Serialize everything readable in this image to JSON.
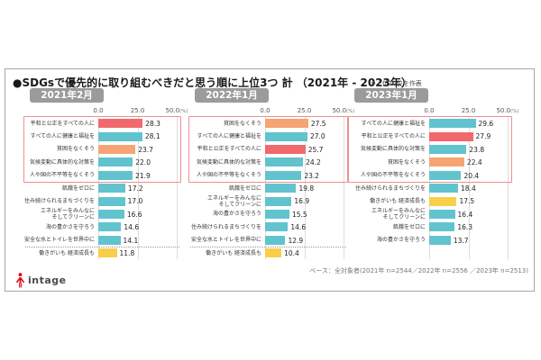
{
  "title": "●SDGsで優先的に取り組むべきだと思う順に上位3つ 計 （2021年 - 2023年）",
  "note": "※上位10位を作表",
  "base_note": "ベース：全対象者(2021年 n=2544／2022年 n=2556 ／2023年 n=2513)",
  "logo": {
    "text": "intage",
    "color": "#e60012"
  },
  "colors": {
    "teal": "#61c3ce",
    "red": "#f1696d",
    "orange": "#f6a473",
    "yellow": "#f8ce4b",
    "highlight_border": "#f08e8e",
    "badge_bg": "#9b9b9b",
    "gridline": "#dcdcdc"
  },
  "axis": {
    "max": 50,
    "ticks": [
      {
        "label": "0.0",
        "value": 0,
        "suffix": ""
      },
      {
        "label": "25.0",
        "value": 25,
        "suffix": ""
      },
      {
        "label": "50.0",
        "value": 50,
        "suffix": "(%)"
      }
    ]
  },
  "chart_data": [
    {
      "type": "bar",
      "orientation": "horizontal",
      "period": "2021年2月",
      "xlim": [
        0,
        50
      ],
      "highlight_top": 5,
      "divider_before_last": true,
      "items": [
        {
          "label": "平和と公正をすべての人に",
          "value": 28.3,
          "color": "red"
        },
        {
          "label": "すべての人に健康と福祉を",
          "value": 28.1,
          "color": "teal"
        },
        {
          "label": "貧困をなくそう",
          "value": 23.7,
          "color": "orange"
        },
        {
          "label": "気候変動に具体的な対策を",
          "value": 22.0,
          "color": "teal"
        },
        {
          "label": "人や国の不平等をなくそう",
          "value": 21.9,
          "color": "teal"
        },
        {
          "label": "飢餓をゼロに",
          "value": 17.2,
          "color": "teal"
        },
        {
          "label": "住み続けられるまちづくりを",
          "value": 17.0,
          "color": "teal"
        },
        {
          "label": "エネルギーをみんなに\nそしてクリーンに",
          "value": 16.6,
          "color": "teal"
        },
        {
          "label": "海の豊かさを守ろう",
          "value": 14.6,
          "color": "teal"
        },
        {
          "label": "安全な水とトイレを世界中に",
          "value": 14.1,
          "color": "teal"
        },
        {
          "label": "働きがいも 経済成長も",
          "value": 11.8,
          "color": "yellow"
        }
      ]
    },
    {
      "type": "bar",
      "orientation": "horizontal",
      "period": "2022年1月",
      "xlim": [
        0,
        50
      ],
      "highlight_top": 5,
      "divider_before_last": true,
      "items": [
        {
          "label": "貧困をなくそう",
          "value": 27.5,
          "color": "orange"
        },
        {
          "label": "すべての人に健康と福祉を",
          "value": 27.0,
          "color": "teal"
        },
        {
          "label": "平和と公正をすべての人に",
          "value": 25.7,
          "color": "red"
        },
        {
          "label": "気候変動に具体的な対策を",
          "value": 24.2,
          "color": "teal"
        },
        {
          "label": "人や国の不平等をなくそう",
          "value": 23.2,
          "color": "teal"
        },
        {
          "label": "飢餓をゼロに",
          "value": 19.8,
          "color": "teal"
        },
        {
          "label": "エネルギーをみんなに\nそしてクリーンに",
          "value": 16.9,
          "color": "teal"
        },
        {
          "label": "海の豊かさを守ろう",
          "value": 15.5,
          "color": "teal"
        },
        {
          "label": "住み続けられるまちづくりを",
          "value": 14.6,
          "color": "teal"
        },
        {
          "label": "安全な水とトイレを世界中に",
          "value": 12.9,
          "color": "teal"
        },
        {
          "label": "働きがいも 経済成長も",
          "value": 10.4,
          "color": "yellow"
        }
      ]
    },
    {
      "type": "bar",
      "orientation": "horizontal",
      "period": "2023年1月",
      "xlim": [
        0,
        50
      ],
      "highlight_top": 5,
      "divider_before_last": false,
      "items": [
        {
          "label": "すべての人に健康と福祉を",
          "value": 29.6,
          "color": "teal"
        },
        {
          "label": "平和と公正をすべての人に",
          "value": 27.9,
          "color": "red"
        },
        {
          "label": "気候変動に具体的な対策を",
          "value": 23.8,
          "color": "teal"
        },
        {
          "label": "貧困をなくそう",
          "value": 22.4,
          "color": "orange"
        },
        {
          "label": "人や国の不平等をなくそう",
          "value": 20.4,
          "color": "teal"
        },
        {
          "label": "住み続けられるまちづくりを",
          "value": 18.4,
          "color": "teal"
        },
        {
          "label": "働きがいも 経済成長も",
          "value": 17.5,
          "color": "yellow"
        },
        {
          "label": "エネルギーをみんなに\nそしてクリーンに",
          "value": 16.4,
          "color": "teal"
        },
        {
          "label": "飢餓をゼロに",
          "value": 16.3,
          "color": "teal"
        },
        {
          "label": "海の豊かさを守ろう",
          "value": 13.7,
          "color": "teal"
        }
      ]
    }
  ]
}
